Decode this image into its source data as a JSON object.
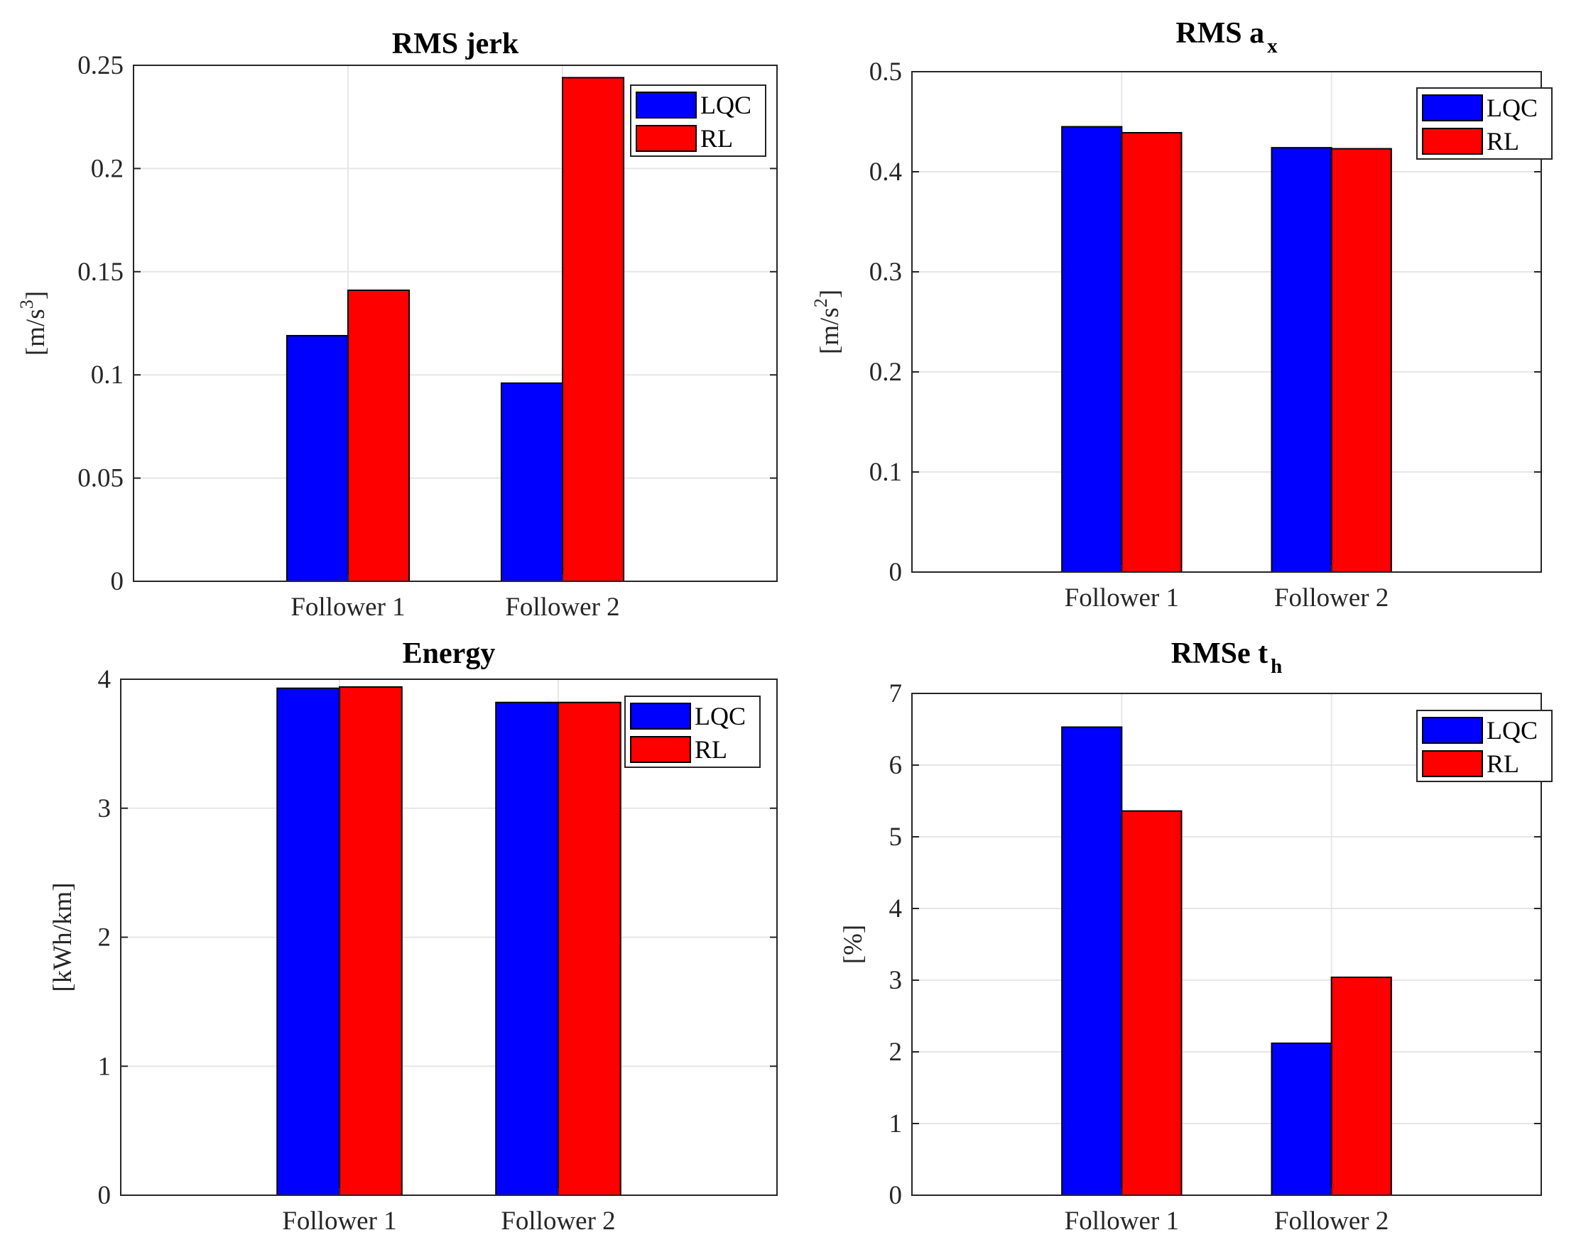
{
  "colors": {
    "lqc": "#0000ff",
    "rl": "#ff0000",
    "grid": "#e6e6e6",
    "axis": "#262626"
  },
  "chart_data": [
    {
      "type": "bar",
      "title": {
        "main": "RMS jerk",
        "sub": ""
      },
      "ylabel": {
        "pre": "[m/s",
        "sup": "3",
        "post": "]"
      },
      "categories": [
        "Follower 1",
        "Follower 2"
      ],
      "series": [
        {
          "name": "LQC",
          "values": [
            0.119,
            0.096
          ]
        },
        {
          "name": "RL",
          "values": [
            0.141,
            0.244
          ]
        }
      ],
      "ylim": [
        0,
        0.25
      ],
      "yticks": [
        0,
        0.05,
        0.1,
        0.15,
        0.2,
        0.25
      ],
      "ytick_labels": [
        "0",
        "0.05",
        "0.1",
        "0.15",
        "0.2",
        "0.25"
      ],
      "grid": true,
      "legend": "top-right"
    },
    {
      "type": "bar",
      "title": {
        "main": "RMS a",
        "sub": "x"
      },
      "ylabel": {
        "pre": "[m/s",
        "sup": "2",
        "post": "]"
      },
      "categories": [
        "Follower 1",
        "Follower 2"
      ],
      "series": [
        {
          "name": "LQC",
          "values": [
            0.445,
            0.424
          ]
        },
        {
          "name": "RL",
          "values": [
            0.439,
            0.423
          ]
        }
      ],
      "ylim": [
        0,
        0.5
      ],
      "yticks": [
        0,
        0.1,
        0.2,
        0.3,
        0.4,
        0.5
      ],
      "ytick_labels": [
        "0",
        "0.1",
        "0.2",
        "0.3",
        "0.4",
        "0.5"
      ],
      "grid": true,
      "legend": "top-right"
    },
    {
      "type": "bar",
      "title": {
        "main": "Energy",
        "sub": ""
      },
      "ylabel": {
        "pre": "[kWh/km]",
        "sup": "",
        "post": ""
      },
      "categories": [
        "Follower 1",
        "Follower 2"
      ],
      "series": [
        {
          "name": "LQC",
          "values": [
            3.93,
            3.82
          ]
        },
        {
          "name": "RL",
          "values": [
            3.94,
            3.82
          ]
        }
      ],
      "ylim": [
        0,
        4
      ],
      "yticks": [
        0,
        1,
        2,
        3,
        4
      ],
      "ytick_labels": [
        "0",
        "1",
        "2",
        "3",
        "4"
      ],
      "grid": true,
      "legend": "top-right"
    },
    {
      "type": "bar",
      "title": {
        "main": "RMSe t",
        "sub": "h"
      },
      "ylabel": {
        "pre": "[%]",
        "sup": "",
        "post": ""
      },
      "categories": [
        "Follower 1",
        "Follower 2"
      ],
      "series": [
        {
          "name": "LQC",
          "values": [
            6.53,
            2.12
          ]
        },
        {
          "name": "RL",
          "values": [
            5.36,
            3.04
          ]
        }
      ],
      "ylim": [
        0,
        7
      ],
      "yticks": [
        0,
        1,
        2,
        3,
        4,
        5,
        6,
        7
      ],
      "ytick_labels": [
        "0",
        "1",
        "2",
        "3",
        "4",
        "5",
        "6",
        "7"
      ],
      "grid": true,
      "legend": "top-right"
    }
  ]
}
